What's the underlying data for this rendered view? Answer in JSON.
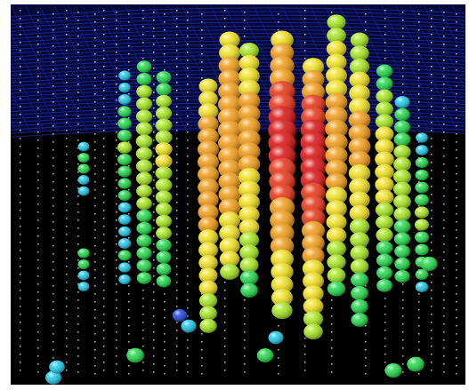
{
  "scene": {
    "subject": "particle-detector-event-display",
    "colors": {
      "background": "#000000",
      "surface_grid": "#1a2a9a",
      "dust_dots": "#e6e6e6",
      "palette": [
        "#1e44d8",
        "#20c8e6",
        "#22d84a",
        "#a6e61e",
        "#f0e01e",
        "#f09a14",
        "#e63212",
        "#d80f0f"
      ]
    },
    "strings": [
      {
        "hits": [
          0.18,
          0.22,
          0.25,
          0.2,
          0.18,
          0.22,
          0.25,
          0.28,
          0.25,
          0.22,
          0.2,
          0.18
        ],
        "gaps": [
          5,
          6,
          7
        ]
      },
      {
        "hits": [
          0.12,
          0.1,
          0.2,
          0.28,
          0.32,
          0.35,
          0.38,
          0.35,
          0.3,
          0.25,
          0.22,
          0.2,
          0.18,
          0.16,
          0.2,
          0.22,
          0.15,
          0.12
        ]
      },
      {
        "hits": [
          0.28,
          0.32,
          0.36,
          0.4,
          0.42,
          0.44,
          0.45,
          0.44,
          0.42,
          0.4,
          0.38,
          0.36,
          0.35,
          0.34,
          0.33,
          0.32,
          0.3,
          0.28
        ]
      },
      {
        "hits": [
          0.3,
          0.34,
          0.38,
          0.42,
          0.46,
          0.48,
          0.5,
          0.5,
          0.48,
          0.46,
          0.44,
          0.42,
          0.4,
          0.38,
          0.35,
          0.32,
          0.3,
          0.28
        ]
      },
      {
        "hits": [
          0.5,
          0.56,
          0.62,
          0.68,
          0.72,
          0.74,
          0.75,
          0.74,
          0.72,
          0.7,
          0.68,
          0.65,
          0.62,
          0.58,
          0.55,
          0.52,
          0.5,
          0.46,
          0.42,
          0.38
        ]
      },
      {
        "hits": [
          0.55,
          0.6,
          0.66,
          0.7,
          0.74,
          0.76,
          0.78,
          0.78,
          0.76,
          0.74,
          0.72,
          0.7,
          0.68,
          0.65,
          0.62,
          0.58,
          0.55,
          0.5,
          0.45
        ]
      },
      {
        "hits": [
          0.45,
          0.52,
          0.58,
          0.62,
          0.66,
          0.68,
          0.7,
          0.7,
          0.68,
          0.66,
          0.64,
          0.62,
          0.6,
          0.56,
          0.52,
          0.48,
          0.44,
          0.4,
          0.35,
          0.3
        ]
      },
      {
        "hits": [
          0.6,
          0.66,
          0.72,
          0.78,
          0.84,
          0.9,
          0.95,
          1.0,
          0.98,
          0.95,
          0.9,
          0.86,
          0.82,
          0.78,
          0.74,
          0.7,
          0.66,
          0.62,
          0.58,
          0.55,
          0.5,
          0.46
        ]
      },
      {
        "hits": [
          0.62,
          0.68,
          0.75,
          0.82,
          0.88,
          0.94,
          0.98,
          1.0,
          0.97,
          0.93,
          0.88,
          0.84,
          0.8,
          0.76,
          0.72,
          0.68,
          0.64,
          0.6,
          0.56,
          0.52,
          0.48,
          0.44
        ]
      },
      {
        "hits": [
          0.4,
          0.45,
          0.5,
          0.55,
          0.6,
          0.64,
          0.67,
          0.7,
          0.72,
          0.72,
          0.7,
          0.68,
          0.65,
          0.62,
          0.58,
          0.54,
          0.5,
          0.46,
          0.42,
          0.38,
          0.35
        ]
      },
      {
        "hits": [
          0.36,
          0.42,
          0.48,
          0.54,
          0.58,
          0.62,
          0.66,
          0.68,
          0.68,
          0.66,
          0.64,
          0.6,
          0.56,
          0.52,
          0.48,
          0.44,
          0.4,
          0.36,
          0.32,
          0.3,
          0.28,
          0.26
        ]
      },
      {
        "hits": [
          0.3,
          0.34,
          0.38,
          0.42,
          0.46,
          0.5,
          0.54,
          0.56,
          0.56,
          0.54,
          0.5,
          0.46,
          0.42,
          0.38,
          0.34,
          0.3,
          0.28,
          0.26
        ]
      },
      {
        "hits": [
          0.2,
          0.24,
          0.28,
          0.34,
          0.38,
          0.42,
          0.44,
          0.44,
          0.42,
          0.38,
          0.34,
          0.3,
          0.26,
          0.24,
          0.22
        ]
      },
      {
        "hits": [
          0.14,
          0.18,
          0.22,
          0.26,
          0.3,
          0.34,
          0.36,
          0.36,
          0.34,
          0.3,
          0.26,
          0.22,
          0.2
        ]
      }
    ]
  }
}
